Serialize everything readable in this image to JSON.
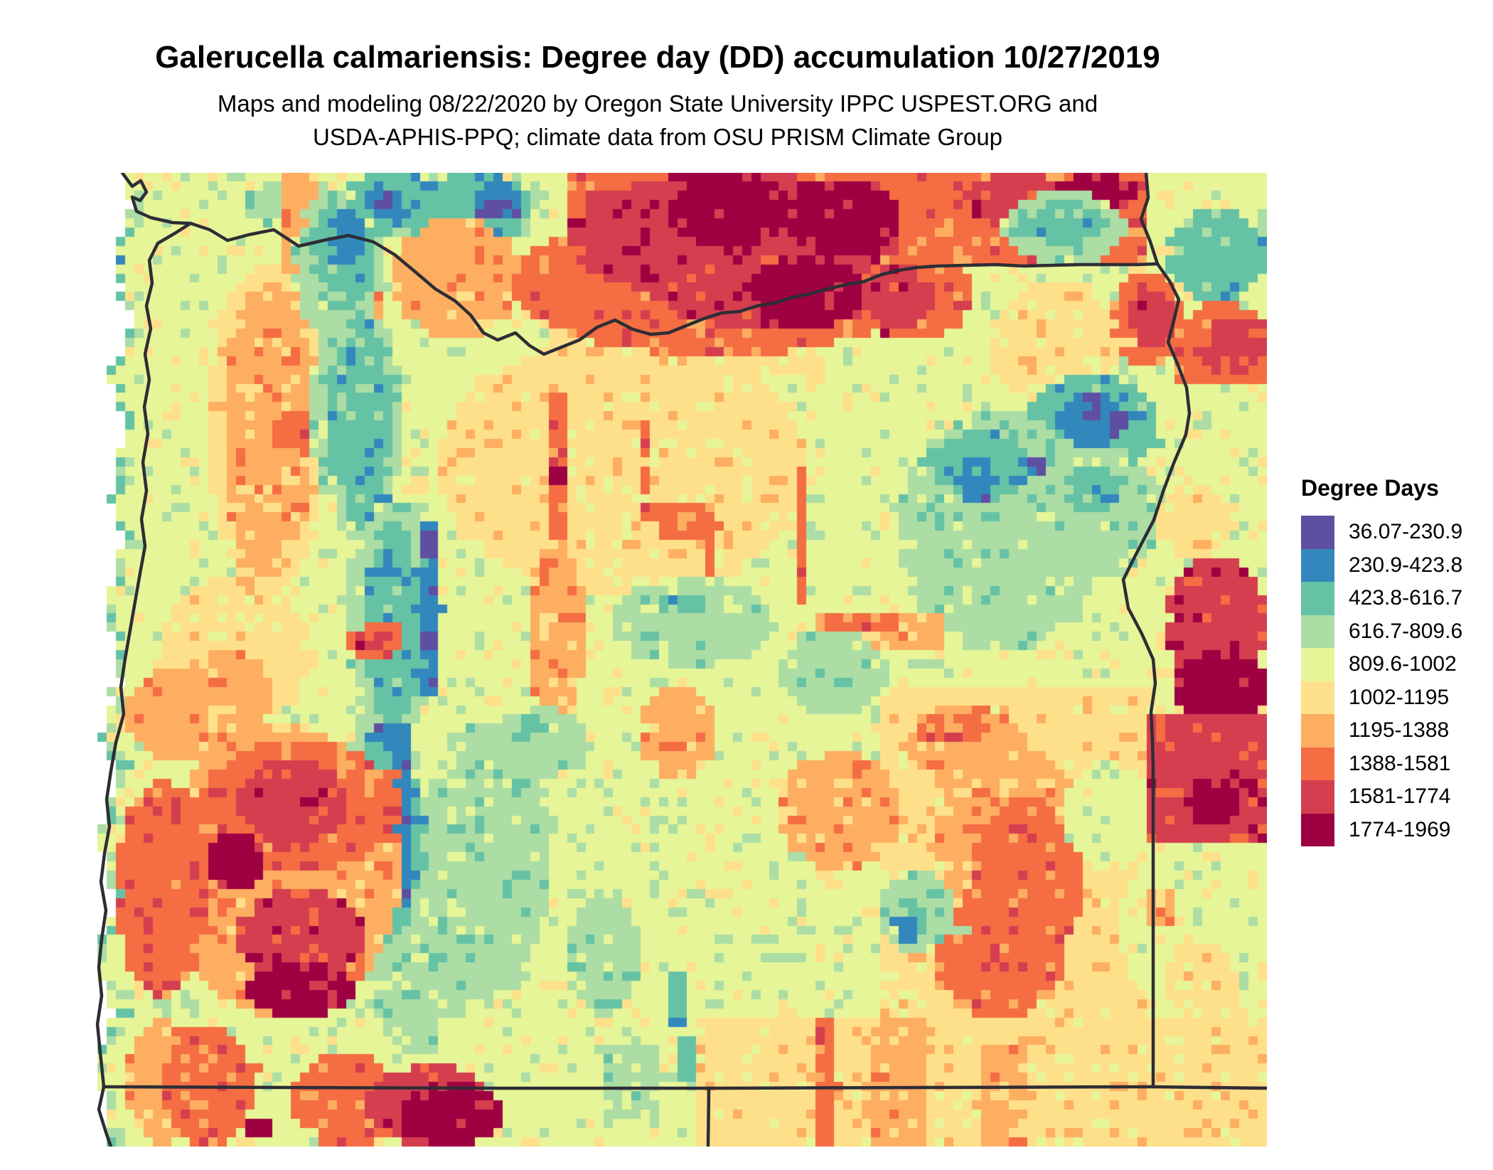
{
  "header": {
    "title": "Galerucella calmariensis: Degree day (DD) accumulation 10/27/2019",
    "subtitle_line1": "Maps and modeling 08/22/2020 by Oregon State University IPPC USPEST.ORG and",
    "subtitle_line2": "USDA-APHIS-PPQ; climate data from OSU PRISM Climate Group"
  },
  "legend": {
    "title": "Degree Days",
    "entries": [
      {
        "label": "36.07-230.9",
        "color": "#5e4fa2"
      },
      {
        "label": "230.9-423.8",
        "color": "#3288bd"
      },
      {
        "label": "423.8-616.7",
        "color": "#66c2a5"
      },
      {
        "label": "616.7-809.6",
        "color": "#abdda4"
      },
      {
        "label": "809.6-1002",
        "color": "#e6f598"
      },
      {
        "label": "1002-1195",
        "color": "#fee08b"
      },
      {
        "label": "1195-1388",
        "color": "#fdae61"
      },
      {
        "label": "1388-1581",
        "color": "#f46d43"
      },
      {
        "label": "1581-1774",
        "color": "#d53e4f"
      },
      {
        "label": "1774-1969",
        "color": "#9e0142"
      }
    ]
  },
  "map": {
    "region": "Oregon and surrounding states",
    "background": "#ffffff",
    "border_color": "#2e2d35",
    "border_width": 4.5,
    "grid": {
      "cols": 128,
      "rows": 106
    },
    "seed": 20191027,
    "speckle": 0.16,
    "ocean": {
      "top_gx": 3.4,
      "bottom_gx": 0.8,
      "wiggle": 0.8
    },
    "paint_ops": [
      [
        "r",
        4,
        0,
        0,
        128,
        106
      ],
      [
        "e",
        5,
        38,
        18,
        40,
        28
      ],
      [
        "r",
        5,
        50,
        10,
        30,
        12
      ],
      [
        "r",
        5,
        86,
        56,
        30,
        42
      ],
      [
        "e",
        3,
        17,
        1,
        6,
        5
      ],
      [
        "e",
        2,
        27,
        0,
        12,
        7
      ],
      [
        "e",
        1,
        30,
        1.5,
        4,
        4
      ],
      [
        "r",
        0,
        31.5,
        2.2,
        1.3,
        1.3
      ],
      [
        "r",
        6,
        21,
        0,
        3.5,
        16
      ],
      [
        "e",
        7,
        21.5,
        12,
        3,
        5
      ],
      [
        "e",
        6,
        26,
        8,
        6,
        10
      ],
      [
        "e",
        5,
        13,
        10,
        13,
        36
      ],
      [
        "e",
        6,
        14.5,
        12,
        10,
        32
      ],
      [
        "e",
        7,
        20,
        26,
        5,
        5
      ],
      [
        "e",
        2,
        36,
        0,
        12,
        8
      ],
      [
        "e",
        1,
        42,
        0.5,
        5,
        6
      ],
      [
        "r",
        0,
        43.5,
        3.5,
        1.3,
        1.3
      ],
      [
        "e",
        6,
        33,
        5,
        14,
        13
      ],
      [
        "e",
        7,
        46,
        4,
        44,
        16
      ],
      [
        "r",
        7,
        52,
        0,
        38,
        8
      ],
      [
        "r",
        7,
        90,
        0,
        25,
        10
      ],
      [
        "e",
        8,
        52,
        0,
        36,
        14
      ],
      [
        "e",
        8,
        60,
        6,
        28,
        11
      ],
      [
        "e",
        9,
        63,
        0,
        13,
        8
      ],
      [
        "e",
        9,
        76,
        1,
        12,
        8
      ],
      [
        "e",
        9,
        72,
        9,
        12,
        8
      ],
      [
        "e",
        8,
        95,
        0,
        12,
        6
      ],
      [
        "e",
        9,
        105,
        0,
        9,
        4
      ],
      [
        "e",
        9,
        85.5,
        14,
        3,
        4
      ],
      [
        "e",
        7,
        84,
        8,
        12,
        10
      ],
      [
        "e",
        8,
        84,
        10,
        8,
        7
      ],
      [
        "e",
        3,
        99,
        2,
        14,
        8
      ],
      [
        "e",
        2,
        101,
        3,
        9,
        5
      ],
      [
        "e",
        2,
        117,
        4,
        11,
        10
      ],
      [
        "e",
        5,
        98,
        12,
        14,
        14
      ],
      [
        "e",
        7,
        111,
        11,
        8,
        10
      ],
      [
        "e",
        8,
        113,
        13,
        5,
        6
      ],
      [
        "e",
        7,
        118,
        14,
        10,
        12
      ],
      [
        "e",
        8,
        120,
        16,
        8,
        6
      ],
      [
        "r",
        4,
        116,
        23,
        12,
        11
      ],
      [
        "e",
        2,
        102,
        22,
        14,
        11
      ],
      [
        "e",
        1,
        105,
        24,
        8,
        6
      ],
      [
        "r",
        0,
        108,
        24.5,
        2,
        2
      ],
      [
        "r",
        0,
        111.5,
        26,
        1.5,
        1.5
      ],
      [
        "e",
        3,
        88,
        26,
        22,
        26
      ],
      [
        "e",
        2,
        92,
        28,
        10,
        8
      ],
      [
        "e",
        1,
        94.5,
        31,
        4,
        5
      ],
      [
        "r",
        0,
        102.5,
        31.5,
        1.2,
        1.2
      ],
      [
        "e",
        3,
        103,
        30,
        14,
        14
      ],
      [
        "e",
        2,
        106,
        32,
        6,
        5
      ],
      [
        "r",
        7,
        50.5,
        24,
        1.4,
        16
      ],
      [
        "r",
        9,
        50.5,
        32,
        1.4,
        1.6
      ],
      [
        "r",
        7,
        60,
        27,
        1.4,
        10
      ],
      [
        "r",
        7,
        60,
        36.5,
        8,
        1.4
      ],
      [
        "r",
        7,
        67,
        38,
        1.4,
        6
      ],
      [
        "r",
        7,
        62,
        38.5,
        6,
        1.4
      ],
      [
        "r",
        7,
        77,
        32,
        1.4,
        8
      ],
      [
        "r",
        7,
        77,
        40,
        1.4,
        7
      ],
      [
        "r",
        6,
        79,
        48,
        14,
        4
      ],
      [
        "r",
        7,
        80,
        48.5,
        8,
        1.5
      ],
      [
        "e",
        3,
        57,
        44,
        17,
        10
      ],
      [
        "r",
        2,
        62.5,
        46,
        4,
        1.5
      ],
      [
        "e",
        3,
        75,
        50,
        12,
        9
      ],
      [
        "e",
        6,
        47.5,
        40,
        6.5,
        20
      ],
      [
        "e",
        6,
        60,
        55.5,
        8,
        11
      ],
      [
        "e",
        6,
        75,
        63,
        13,
        13
      ],
      [
        "e",
        3,
        22,
        2,
        10,
        16
      ],
      [
        "e",
        3,
        24,
        14,
        10,
        24
      ],
      [
        "e",
        3,
        28,
        34,
        10,
        28
      ],
      [
        "e",
        3,
        27,
        58,
        9,
        28
      ],
      [
        "e",
        3,
        36,
        60,
        14,
        30
      ],
      [
        "e",
        3,
        30,
        70,
        12,
        26
      ],
      [
        "e",
        2,
        24,
        3,
        7,
        12
      ],
      [
        "e",
        2,
        26,
        16,
        7,
        22
      ],
      [
        "e",
        2,
        30,
        38,
        6,
        22
      ],
      [
        "e",
        2,
        29,
        60,
        7,
        24
      ],
      [
        "e",
        1,
        26,
        3.5,
        4,
        7
      ],
      [
        "e",
        1,
        35.5,
        37,
        3,
        21
      ],
      [
        "r",
        0,
        36.5,
        39.5,
        1.2,
        1.2
      ],
      [
        "r",
        0,
        36.5,
        50.5,
        1.2,
        1.2
      ],
      [
        "e",
        1,
        32.5,
        59.5,
        3,
        22
      ],
      [
        "e",
        1,
        30.5,
        59.5,
        4.5,
        4
      ],
      [
        "r",
        0,
        33,
        79,
        1.3,
        1.3
      ],
      [
        "e",
        7,
        27.5,
        49,
        7,
        4
      ],
      [
        "e",
        8,
        29,
        50,
        4,
        2.5
      ],
      [
        "e",
        3,
        44,
        58,
        10,
        8
      ],
      [
        "r",
        2,
        47,
        59,
        2,
        2
      ],
      [
        "e",
        5,
        8,
        44,
        16,
        16
      ],
      [
        "e",
        6,
        10,
        52,
        10,
        10
      ],
      [
        "e",
        6,
        4,
        54,
        12,
        10
      ],
      [
        "e",
        6,
        8,
        60,
        26,
        32
      ],
      [
        "e",
        7,
        12,
        62,
        22,
        14
      ],
      [
        "e",
        8,
        16,
        64,
        12,
        9
      ],
      [
        "e",
        9,
        13,
        72,
        6,
        6
      ],
      [
        "e",
        8,
        16,
        78,
        14,
        10
      ],
      [
        "e",
        9,
        17,
        86,
        12,
        6
      ],
      [
        "e",
        7,
        3,
        66,
        10,
        24
      ],
      [
        "e",
        6,
        88,
        58,
        14,
        8
      ],
      [
        "e",
        7,
        90,
        58.5,
        8,
        4
      ],
      [
        "e",
        6,
        92,
        62,
        16,
        20
      ],
      [
        "e",
        7,
        96,
        68,
        12,
        18
      ],
      [
        "e",
        7,
        92,
        78,
        14,
        14
      ],
      [
        "e",
        3,
        86,
        76,
        8,
        9
      ],
      [
        "e",
        2,
        87.5,
        79,
        3.5,
        5
      ],
      [
        "r",
        1,
        88.5,
        81,
        1.3,
        3
      ],
      [
        "e",
        4,
        106,
        64,
        10,
        12
      ],
      [
        "e",
        4,
        112,
        72,
        16,
        20
      ],
      [
        "e",
        8,
        117,
        42,
        11,
        14
      ],
      [
        "e",
        9,
        118,
        52,
        10,
        8
      ],
      [
        "e",
        5,
        116,
        34,
        8,
        8
      ],
      [
        "r",
        8,
        115.5,
        59.5,
        12.5,
        13
      ],
      [
        "e",
        9,
        119,
        66,
        6,
        5
      ],
      [
        "r",
        4,
        115.5,
        73,
        12.5,
        25
      ],
      [
        "e",
        5,
        117,
        84,
        8,
        8
      ],
      [
        "r",
        6,
        115.5,
        78,
        2,
        4
      ],
      [
        "r",
        4,
        38,
        92,
        28,
        14
      ],
      [
        "r",
        5,
        66,
        92,
        62,
        14
      ],
      [
        "e",
        6,
        4,
        92,
        8,
        14
      ],
      [
        "e",
        7,
        8,
        93,
        10,
        13
      ],
      [
        "e",
        7,
        22,
        96,
        12,
        10
      ],
      [
        "e",
        8,
        30,
        97,
        14,
        9
      ],
      [
        "e",
        9,
        34,
        99,
        11,
        7
      ],
      [
        "r",
        9,
        17.5,
        103,
        2,
        2
      ],
      [
        "r",
        2,
        64,
        94,
        2,
        5
      ],
      [
        "r",
        3,
        56,
        95,
        6,
        8
      ],
      [
        "r",
        7,
        79.5,
        92,
        1.6,
        14
      ],
      [
        "r",
        6,
        85.5,
        92,
        5.5,
        14
      ],
      [
        "r",
        6,
        97,
        95,
        5,
        11
      ],
      [
        "r",
        2,
        54.5,
        79,
        1.5,
        10
      ],
      [
        "r",
        2,
        63,
        87,
        1.5,
        6
      ],
      [
        "e",
        3,
        52,
        78,
        8,
        14
      ]
    ],
    "borders": {
      "coastline": [
        [
          47,
          0
        ],
        [
          61,
          19
        ],
        [
          73,
          11
        ],
        [
          81,
          27
        ],
        [
          72,
          39
        ],
        [
          61,
          34
        ],
        [
          67,
          54
        ],
        [
          87,
          63
        ],
        [
          118,
          70
        ],
        [
          143,
          71
        ],
        [
          121,
          85
        ],
        [
          97,
          99
        ],
        [
          85,
          123
        ],
        [
          89,
          155
        ],
        [
          81,
          187
        ],
        [
          87,
          219
        ],
        [
          79,
          255
        ],
        [
          85,
          291
        ],
        [
          78,
          329
        ],
        [
          83,
          367
        ],
        [
          76,
          407
        ],
        [
          81,
          447
        ],
        [
          74,
          487
        ],
        [
          79,
          525
        ],
        [
          72,
          563
        ],
        [
          65,
          603
        ],
        [
          58,
          643
        ],
        [
          51,
          683
        ],
        [
          45,
          723
        ],
        [
          49,
          761
        ],
        [
          38,
          801
        ],
        [
          31,
          841
        ],
        [
          25,
          881
        ],
        [
          29,
          919
        ],
        [
          22,
          957
        ],
        [
          17,
          997
        ],
        [
          24,
          1037
        ],
        [
          18,
          1077
        ],
        [
          14,
          1117
        ],
        [
          18,
          1157
        ],
        [
          12,
          1197
        ],
        [
          16,
          1237
        ],
        [
          21,
          1285
        ],
        [
          14,
          1317
        ],
        [
          24,
          1349
        ],
        [
          31,
          1369
        ]
      ],
      "wa_or_columbia": [
        [
          143,
          71
        ],
        [
          170,
          80
        ],
        [
          195,
          95
        ],
        [
          225,
          87
        ],
        [
          260,
          80
        ],
        [
          295,
          103
        ],
        [
          330,
          95
        ],
        [
          365,
          88
        ],
        [
          400,
          97
        ],
        [
          430,
          115
        ],
        [
          460,
          140
        ],
        [
          487,
          163
        ],
        [
          515,
          180
        ],
        [
          537,
          200
        ],
        [
          555,
          225
        ],
        [
          575,
          235
        ],
        [
          600,
          225
        ],
        [
          620,
          243
        ],
        [
          640,
          255
        ],
        [
          665,
          245
        ],
        [
          690,
          235
        ],
        [
          715,
          217
        ],
        [
          740,
          207
        ],
        [
          765,
          220
        ],
        [
          790,
          227
        ],
        [
          815,
          225
        ],
        [
          840,
          215
        ],
        [
          865,
          205
        ],
        [
          890,
          197
        ],
        [
          915,
          195
        ],
        [
          940,
          187
        ],
        [
          965,
          183
        ],
        [
          990,
          175
        ],
        [
          1015,
          170
        ],
        [
          1040,
          163
        ],
        [
          1065,
          157
        ],
        [
          1090,
          153
        ],
        [
          1115,
          143
        ],
        [
          1140,
          137
        ],
        [
          1165,
          133
        ],
        [
          1195,
          131
        ],
        [
          1235,
          130
        ],
        [
          1275,
          129
        ],
        [
          1315,
          131
        ],
        [
          1355,
          130
        ],
        [
          1395,
          129
        ],
        [
          1435,
          129
        ],
        [
          1475,
          129
        ],
        [
          1503,
          128
        ]
      ],
      "wa_id": [
        [
          1487,
          0
        ],
        [
          1490,
          35
        ],
        [
          1480,
          65
        ],
        [
          1493,
          97
        ],
        [
          1503,
          128
        ]
      ],
      "or_id_snake": [
        [
          1503,
          128
        ],
        [
          1520,
          152
        ],
        [
          1533,
          178
        ],
        [
          1526,
          208
        ],
        [
          1518,
          238
        ],
        [
          1531,
          268
        ],
        [
          1544,
          302
        ],
        [
          1548,
          338
        ],
        [
          1543,
          368
        ],
        [
          1526,
          408
        ],
        [
          1511,
          448
        ],
        [
          1498,
          488
        ],
        [
          1472,
          538
        ],
        [
          1455,
          572
        ],
        [
          1462,
          612
        ],
        [
          1481,
          648
        ],
        [
          1497,
          684
        ],
        [
          1500,
          718
        ],
        [
          1494,
          758
        ],
        [
          1496,
          798
        ],
        [
          1497,
          838
        ],
        [
          1497,
          1285
        ]
      ],
      "south_42n": [
        [
          21,
          1285
        ],
        [
          275,
          1286
        ],
        [
          575,
          1287
        ],
        [
          872,
          1287
        ],
        [
          1175,
          1286
        ],
        [
          1497,
          1285
        ],
        [
          1657,
          1287
        ]
      ],
      "ca_nv": [
        [
          872,
          1287
        ],
        [
          871,
          1369
        ]
      ]
    }
  }
}
